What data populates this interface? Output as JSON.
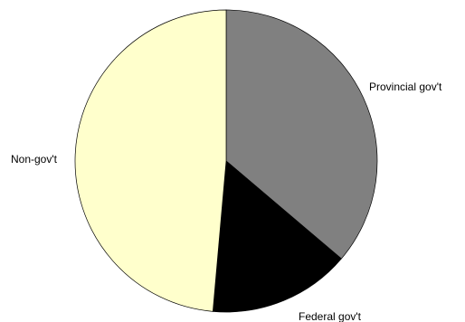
{
  "chart_data": {
    "type": "pie",
    "slices": [
      {
        "label": "Provincial gov't",
        "value": 36.2,
        "color": "#808080"
      },
      {
        "label": "Federal gov't",
        "value": 15.2,
        "color": "#000000"
      },
      {
        "label": "Non-gov't",
        "value": 48.6,
        "color": "#ffffcc"
      }
    ],
    "start_angle_deg": 0,
    "direction": "clockwise",
    "legend": "none"
  }
}
